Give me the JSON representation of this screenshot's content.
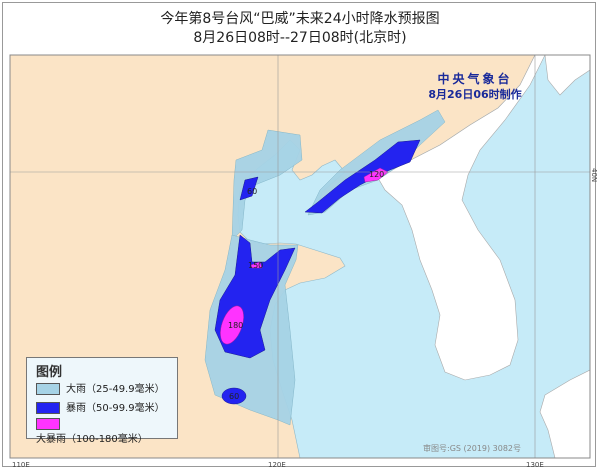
{
  "title": "今年第8号台风“巴威”未来24小时降水预报图",
  "subtitle": "8月26日08时--27日08时(北京时)",
  "agency": {
    "name": "中央气象台",
    "issued": "8月26日06时制作"
  },
  "legend": {
    "title": "图例",
    "items": [
      {
        "label": "大雨（25-49.9毫米）",
        "color": "#a6d3e6"
      },
      {
        "label": "暴雨（50-99.9毫米）",
        "color": "#2323f0"
      },
      {
        "label": "大暴雨（100-180毫米）",
        "color": "#ff33ff"
      }
    ]
  },
  "rain_labels": [
    "60",
    "120",
    "150",
    "180",
    "60"
  ],
  "axis_labels": {
    "lon": [
      "110E",
      "120E",
      "130E"
    ],
    "lat": [
      "40N"
    ]
  },
  "map_note": "审图号:GS (2019) 3082号",
  "colors": {
    "land": "#fbe4c6",
    "sea": "#c6ebf8",
    "foreign_land": "#ffffff"
  }
}
